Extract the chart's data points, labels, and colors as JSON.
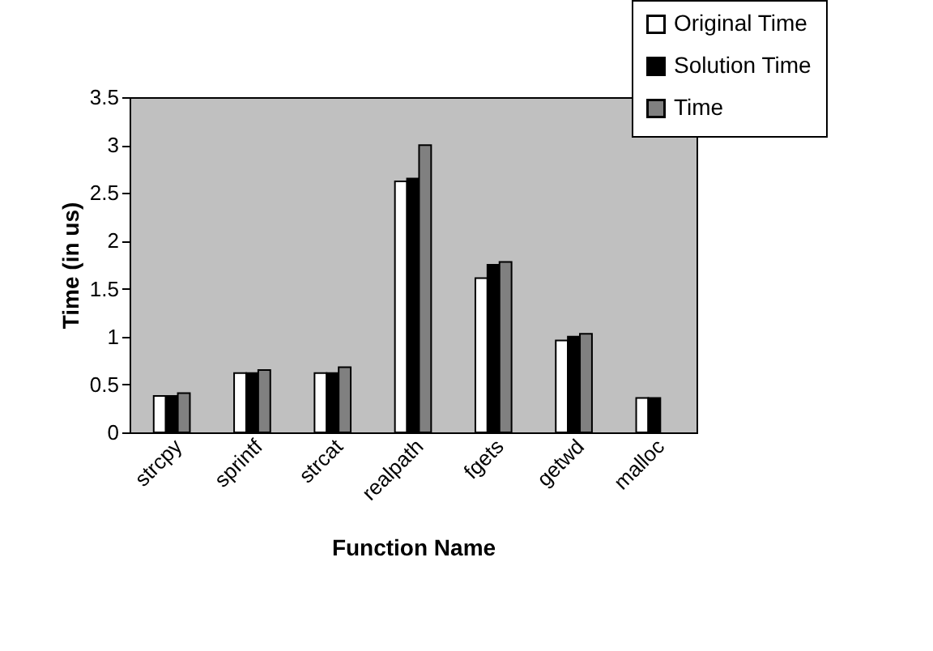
{
  "chart_data": {
    "type": "bar",
    "xlabel": "Function Name",
    "ylabel": "Time (in us)",
    "categories": [
      "strcpy",
      "sprintf",
      "strcat",
      "realpath",
      "fgets",
      "getwd",
      "malloc"
    ],
    "series": [
      {
        "name": "Original Time",
        "color": "#ffffff",
        "values": [
          0.38,
          0.62,
          0.62,
          2.62,
          1.61,
          0.96,
          0.36
        ]
      },
      {
        "name": "Solution Time",
        "color": "#000000",
        "values": [
          0.38,
          0.62,
          0.62,
          2.65,
          1.75,
          1.0,
          0.36
        ]
      },
      {
        "name": "Time",
        "color": "#808080",
        "values": [
          0.41,
          0.65,
          0.68,
          3.0,
          1.78,
          1.03,
          null
        ]
      }
    ],
    "ylim": [
      0,
      3.5
    ],
    "yticks": [
      0,
      0.5,
      1,
      1.5,
      2,
      2.5,
      3,
      3.5
    ],
    "grid": false,
    "legend": "top right"
  }
}
